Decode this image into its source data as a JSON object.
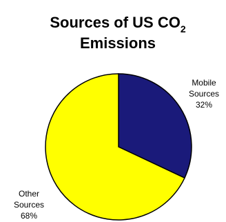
{
  "chart_data": {
    "type": "pie",
    "title": "Sources of US CO",
    "title_subscript": "2",
    "title_line2": "Emissions",
    "slices": [
      {
        "label_line1": "Mobile",
        "label_line2": "Sources",
        "percent_label": "32%",
        "value": 32,
        "color": "#1a1a7a"
      },
      {
        "label_line1": "Other",
        "label_line2": "Sources",
        "percent_label": "68%",
        "value": 68,
        "color": "#ffff00"
      }
    ],
    "start_angle": "12 o'clock",
    "direction": "clockwise",
    "legend": "none"
  }
}
